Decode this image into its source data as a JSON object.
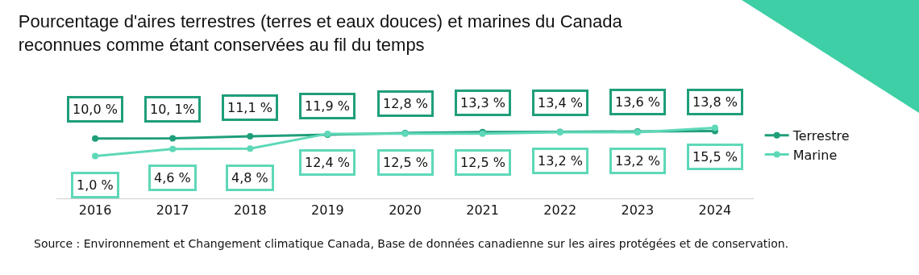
{
  "chart_data": {
    "type": "line",
    "title": "Pourcentage d'aires terrestres (terres et eaux douces) et marines du Canada\nreconnues comme étant conservées au fil du temps",
    "categories": [
      "2016",
      "2017",
      "2018",
      "2019",
      "2020",
      "2021",
      "2022",
      "2023",
      "2024"
    ],
    "series": [
      {
        "name": "Terrestre",
        "color": "#1f9e7a",
        "values": [
          10.0,
          10.1,
          11.1,
          11.9,
          12.8,
          13.3,
          13.4,
          13.6,
          13.8
        ],
        "value_labels": [
          "10,0 %",
          "10, 1%",
          "11,1 %",
          "11,9 %",
          "12,8 %",
          "13,3 %",
          "13,4 %",
          "13,6 %",
          "13,8 %"
        ]
      },
      {
        "name": "Marine",
        "color": "#5ed8b8",
        "values": [
          1.0,
          4.6,
          4.8,
          12.4,
          12.5,
          12.5,
          13.2,
          13.2,
          15.5
        ],
        "value_labels": [
          "1,0 %",
          "4,6 %",
          "4,8 %",
          "12,4 %",
          "12,5 %",
          "12,5 %",
          "13,2 %",
          "13,2 %",
          "15,5 %"
        ]
      }
    ],
    "marker": "circle",
    "legend": "right",
    "grid": false,
    "annotations": [
      "Source : Environnement et Changement climatique Canada, Base de données canadienne sur les aires protégées et de conservation."
    ]
  }
}
